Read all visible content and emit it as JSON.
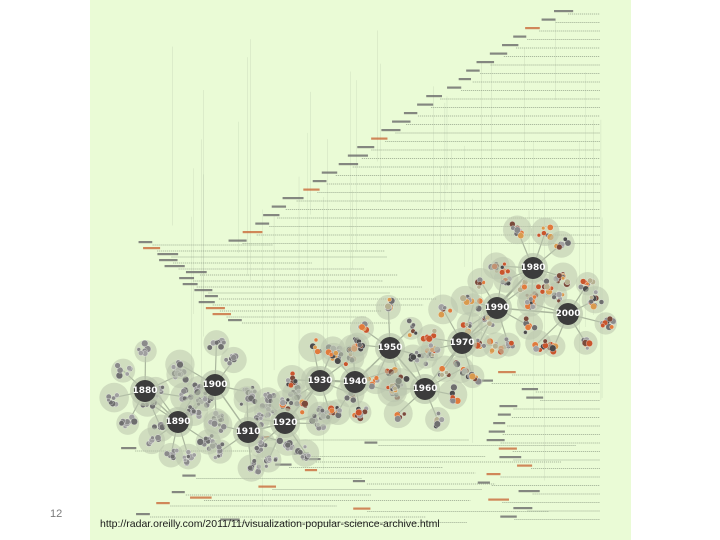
{
  "slide": {
    "number": "12",
    "url": "http://radar.oreilly.com/2011/11/visualization-popular-science-archive.html"
  },
  "colors": {
    "background": "#eafbd6",
    "hub": "#3c3c3c",
    "halo": "#b9c4ad",
    "spoke": "#9aa58f",
    "timeline": "#8c9a84",
    "node_palette": [
      "#6e6e6e",
      "#8a8a8a",
      "#a0a0a0",
      "#c9552c",
      "#e07b3c",
      "#d99a4e",
      "#7a4a3a",
      "#b5b090",
      "#4a4a4a"
    ]
  },
  "hubs": [
    {
      "id": "1880",
      "label": "1880"
    },
    {
      "id": "1890",
      "label": "1890"
    },
    {
      "id": "1900",
      "label": "1900"
    },
    {
      "id": "1910",
      "label": "1910"
    },
    {
      "id": "1920",
      "label": "1920"
    },
    {
      "id": "1930",
      "label": "1930"
    },
    {
      "id": "1940",
      "label": "1940"
    },
    {
      "id": "1950",
      "label": "1950"
    },
    {
      "id": "1960",
      "label": "1960"
    },
    {
      "id": "1970",
      "label": "1970"
    },
    {
      "id": "1980",
      "label": "1980"
    },
    {
      "id": "1990",
      "label": "1990"
    },
    {
      "id": "2000",
      "label": "2000"
    }
  ]
}
